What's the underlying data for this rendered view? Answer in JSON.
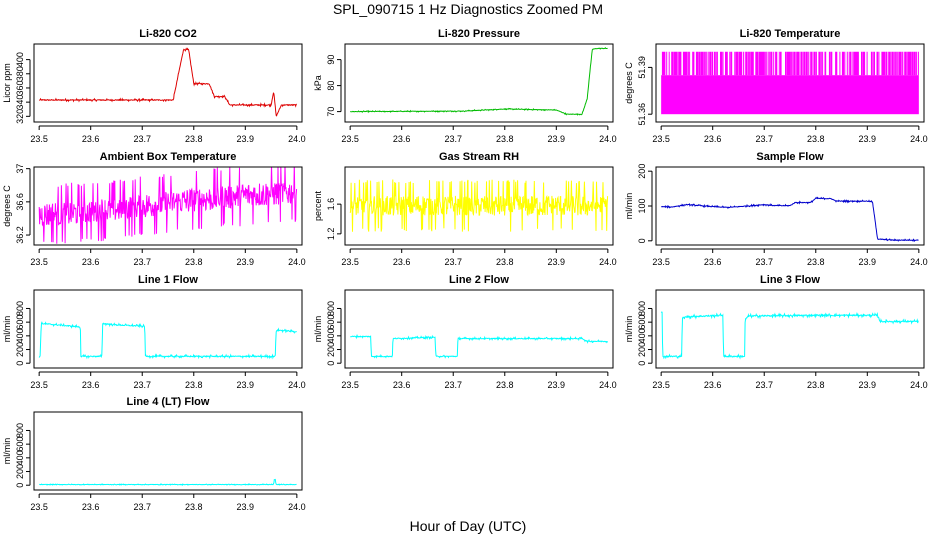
{
  "figure": {
    "title": "SPL_090715 1 Hz Diagnostics Zoomed PM",
    "xlabel": "Hour of Day (UTC)"
  },
  "chart_data": [
    {
      "type": "line",
      "title": "Li-820 CO2",
      "ylabel": "Licor ppm",
      "color": "#dd0000",
      "xlim": [
        23.49,
        24.01
      ],
      "ylim": [
        312,
        422
      ],
      "xticks": [
        "23.5",
        "23.6",
        "23.7",
        "23.8",
        "23.9",
        "24.0"
      ],
      "yticks": [
        320,
        340,
        360,
        380,
        400
      ],
      "noise": 1.0,
      "x": [
        23.5,
        23.75,
        23.76,
        23.78,
        23.79,
        23.8,
        23.82,
        23.83,
        23.84,
        23.86,
        23.87,
        23.93,
        23.95,
        23.955,
        23.96,
        23.97,
        23.98,
        24.0
      ],
      "y": [
        343,
        343,
        343,
        414,
        414,
        366,
        366,
        366,
        348,
        348,
        336,
        336,
        336,
        355,
        320,
        336,
        336,
        336
      ]
    },
    {
      "type": "line",
      "title": "Li-820 Pressure",
      "ylabel": "kPa",
      "color": "#00bb00",
      "xlim": [
        23.49,
        24.01
      ],
      "ylim": [
        66,
        96
      ],
      "xticks": [
        "23.5",
        "23.6",
        "23.7",
        "23.8",
        "23.9",
        "24.0"
      ],
      "yticks": [
        70,
        80,
        90
      ],
      "noise": 0.15,
      "x": [
        23.5,
        23.72,
        23.8,
        23.9,
        23.92,
        23.95,
        23.96,
        23.965,
        23.97,
        23.98,
        24.0
      ],
      "y": [
        70,
        70.2,
        71,
        70.6,
        69,
        69,
        75,
        85,
        94,
        94.3,
        94.3
      ]
    },
    {
      "type": "spikes",
      "title": "Li-820 Temperature",
      "ylabel": "degrees C",
      "color": "#ff00ff",
      "xlim": [
        23.49,
        24.01
      ],
      "ylim": [
        51.355,
        51.405
      ],
      "xticks": [
        "23.5",
        "23.6",
        "23.7",
        "23.8",
        "23.9",
        "24.0"
      ],
      "yticks": [
        51.36,
        51.39
      ],
      "low": 51.36,
      "band": 51.385,
      "spike": 51.4
    },
    {
      "type": "line",
      "title": "Ambient Box Temperature",
      "ylabel": "degrees C",
      "color": "#ff00ff",
      "xlim": [
        23.49,
        24.01
      ],
      "ylim": [
        36.08,
        37.02
      ],
      "xticks": [
        "23.5",
        "23.6",
        "23.7",
        "23.8",
        "23.9",
        "24.0"
      ],
      "yticks": [
        36.2,
        36.6,
        37.0
      ],
      "noise": 0.23,
      "x": [
        23.5,
        23.6,
        23.7,
        23.8,
        23.9,
        24.0
      ],
      "y": [
        36.44,
        36.48,
        36.55,
        36.62,
        36.68,
        36.72
      ]
    },
    {
      "type": "line",
      "title": "Gas Stream RH",
      "ylabel": "percent",
      "color": "#ffff00",
      "xlim": [
        23.49,
        24.01
      ],
      "ylim": [
        1.05,
        2.1
      ],
      "xticks": [
        "23.5",
        "23.6",
        "23.7",
        "23.8",
        "23.9",
        "24.0"
      ],
      "yticks": [
        1.2,
        1.6
      ],
      "noise": 0.22,
      "x": [
        23.5,
        24.0
      ],
      "y": [
        1.58,
        1.58
      ]
    },
    {
      "type": "line",
      "title": "Sample Flow",
      "ylabel": "ml/min",
      "color": "#0000cc",
      "xlim": [
        23.49,
        24.01
      ],
      "ylim": [
        -12,
        212
      ],
      "xticks": [
        "23.5",
        "23.6",
        "23.7",
        "23.8",
        "23.9",
        "24.0"
      ],
      "yticks": [
        0,
        100,
        200
      ],
      "noise": 1.5,
      "x": [
        23.5,
        23.52,
        23.55,
        23.6,
        23.63,
        23.65,
        23.7,
        23.72,
        23.75,
        23.76,
        23.79,
        23.8,
        23.83,
        23.84,
        23.9,
        23.91,
        23.92,
        23.95,
        24.0
      ],
      "y": [
        98,
        97,
        104,
        98,
        96,
        98,
        104,
        101,
        101,
        110,
        110,
        122,
        121,
        114,
        114,
        112,
        5,
        2,
        2
      ]
    },
    {
      "type": "line",
      "title": "Line 1 Flow",
      "ylabel": "ml/min",
      "color": "#00ffff",
      "xlim": [
        23.49,
        24.01
      ],
      "ylim": [
        -70,
        1070
      ],
      "xticks": [
        "23.5",
        "23.6",
        "23.7",
        "23.8",
        "23.9",
        "24.0"
      ],
      "yticks": [
        0,
        200,
        400,
        600,
        800
      ],
      "noise": 12,
      "x": [
        23.5,
        23.502,
        23.504,
        23.535,
        23.58,
        23.581,
        23.622,
        23.623,
        23.65,
        23.705,
        23.706,
        23.958,
        23.96,
        23.97,
        24.0
      ],
      "y": [
        100,
        100,
        580,
        560,
        530,
        100,
        100,
        580,
        560,
        540,
        100,
        100,
        480,
        480,
        460
      ]
    },
    {
      "type": "line",
      "title": "Line 2 Flow",
      "ylabel": "ml/min",
      "color": "#00ffff",
      "xlim": [
        23.49,
        24.01
      ],
      "ylim": [
        -70,
        1070
      ],
      "xticks": [
        "23.5",
        "23.6",
        "23.7",
        "23.8",
        "23.9",
        "24.0"
      ],
      "yticks": [
        0,
        200,
        400,
        600,
        800
      ],
      "noise": 10,
      "x": [
        23.5,
        23.54,
        23.541,
        23.582,
        23.583,
        23.665,
        23.666,
        23.708,
        23.709,
        23.8,
        23.95,
        23.96,
        24.0
      ],
      "y": [
        390,
        390,
        100,
        100,
        360,
        380,
        100,
        100,
        360,
        360,
        360,
        320,
        320
      ]
    },
    {
      "type": "line",
      "title": "Line 3 Flow",
      "ylabel": "ml/min",
      "color": "#00ffff",
      "xlim": [
        23.49,
        24.01
      ],
      "ylim": [
        -70,
        1070
      ],
      "xticks": [
        "23.5",
        "23.6",
        "23.7",
        "23.8",
        "23.9",
        "24.0"
      ],
      "yticks": [
        0,
        200,
        400,
        600,
        800
      ],
      "noise": 15,
      "x": [
        23.5,
        23.502,
        23.503,
        23.54,
        23.541,
        23.55,
        23.62,
        23.621,
        23.662,
        23.663,
        23.67,
        23.8,
        23.92,
        23.925,
        24.0
      ],
      "y": [
        740,
        740,
        100,
        100,
        660,
        680,
        700,
        100,
        100,
        640,
        690,
        700,
        700,
        610,
        610
      ]
    },
    {
      "type": "line",
      "title": "Line 4 (LT) Flow",
      "ylabel": "ml/min",
      "color": "#00ffff",
      "xlim": [
        23.49,
        24.01
      ],
      "ylim": [
        -70,
        1070
      ],
      "xticks": [
        "23.5",
        "23.6",
        "23.7",
        "23.8",
        "23.9",
        "24.0"
      ],
      "yticks": [
        0,
        200,
        400,
        600,
        800
      ],
      "noise": 4,
      "x": [
        23.5,
        23.955,
        23.956,
        23.958,
        23.96,
        24.0
      ],
      "y": [
        10,
        10,
        80,
        80,
        10,
        10
      ]
    }
  ]
}
